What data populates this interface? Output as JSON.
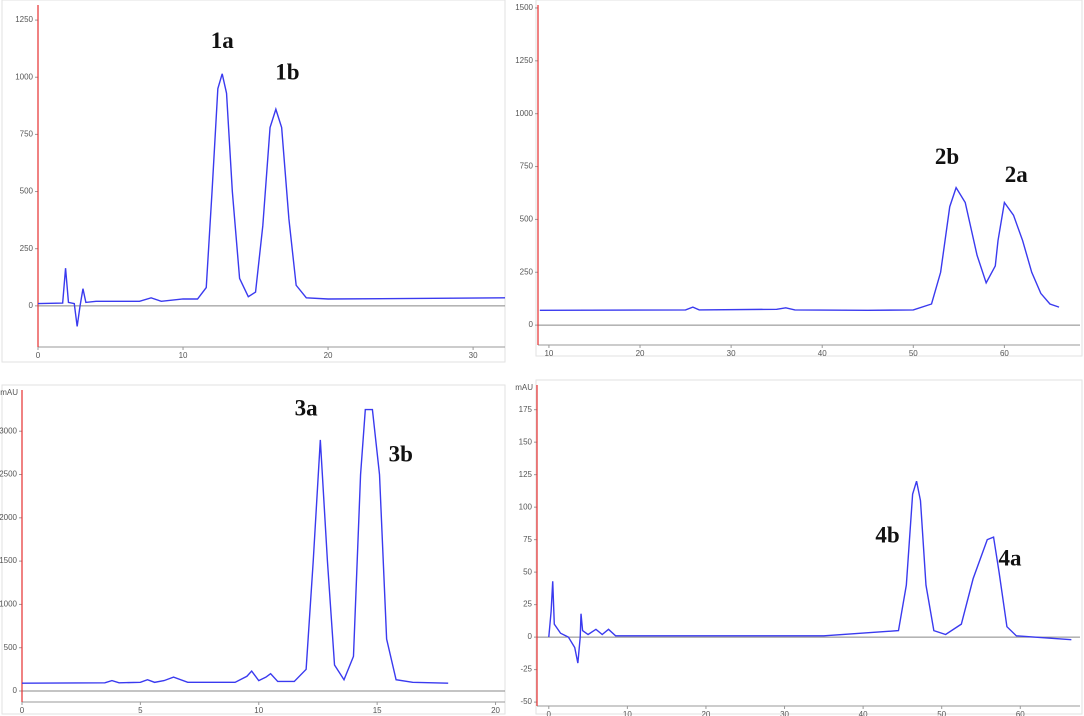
{
  "chart_data": [
    {
      "type": "line",
      "color": "#3a3aef",
      "xlim": [
        0,
        32.2
      ],
      "ylim": [
        -180,
        1316
      ],
      "xticks": [
        0,
        10,
        20,
        30
      ],
      "yticks": [
        0,
        250,
        500,
        750,
        1000,
        1250
      ],
      "x": [
        0,
        1.7,
        1.9,
        2.1,
        2.5,
        2.7,
        2.9,
        3.1,
        3.3,
        4,
        7,
        7.8,
        8.5,
        10,
        11,
        11.6,
        12,
        12.4,
        12.7,
        13,
        13.4,
        13.9,
        14.5,
        15,
        15.5,
        16,
        16.4,
        16.8,
        17.3,
        17.8,
        18.5,
        20,
        32.2
      ],
      "values": [
        10,
        12,
        165,
        15,
        10,
        -90,
        0,
        75,
        15,
        20,
        20,
        35,
        20,
        30,
        30,
        80,
        500,
        950,
        1015,
        930,
        500,
        120,
        40,
        60,
        350,
        780,
        860,
        780,
        380,
        90,
        35,
        30,
        35
      ],
      "annotations": [
        {
          "text": "1a",
          "x": 12.7,
          "y": 1150
        },
        {
          "text": "1b",
          "x": 17.2,
          "y": 1013
        }
      ]
    },
    {
      "type": "line",
      "color": "#3a3aef",
      "xlim": [
        8.8,
        68.3
      ],
      "ylim": [
        -94,
        1514
      ],
      "xticks": [
        10,
        20,
        30,
        40,
        50,
        60
      ],
      "yticks": [
        0,
        250,
        500,
        750,
        1000,
        1250,
        1500
      ],
      "x": [
        9,
        25,
        25.8,
        26.5,
        35,
        36,
        37,
        45,
        50,
        52,
        53,
        54,
        54.7,
        55.7,
        57,
        58,
        59,
        59.3,
        60,
        61,
        62,
        63,
        64,
        65,
        66
      ],
      "values": [
        70,
        72,
        85,
        72,
        75,
        82,
        72,
        70,
        72,
        100,
        250,
        560,
        650,
        580,
        330,
        200,
        280,
        400,
        580,
        520,
        400,
        250,
        150,
        100,
        85
      ],
      "annotations": [
        {
          "text": "2b",
          "x": 53.7,
          "y": 788
        },
        {
          "text": "2a",
          "x": 61.3,
          "y": 703
        }
      ]
    },
    {
      "type": "line",
      "color": "#3a3aef",
      "ylabel": "mAU",
      "xlim": [
        0,
        20.4
      ],
      "ylim": [
        -127,
        3476
      ],
      "xticks": [
        0,
        5,
        10,
        15,
        20
      ],
      "yticks": [
        0,
        500,
        1000,
        1500,
        2000,
        2500,
        3000
      ],
      "x": [
        0,
        3.5,
        3.8,
        4.1,
        5,
        5.3,
        5.6,
        6,
        6.4,
        7,
        9,
        9.5,
        9.7,
        10,
        10.3,
        10.5,
        10.8,
        11.5,
        12,
        12.3,
        12.6,
        12.9,
        13.2,
        13.6,
        14,
        14.3,
        14.5,
        14.8,
        15.1,
        15.4,
        15.8,
        16.5,
        18
      ],
      "values": [
        90,
        95,
        120,
        95,
        100,
        130,
        100,
        120,
        160,
        100,
        100,
        170,
        230,
        120,
        160,
        200,
        110,
        110,
        250,
        1500,
        2900,
        1500,
        300,
        130,
        400,
        2500,
        3250,
        3250,
        2500,
        600,
        130,
        100,
        90
      ],
      "annotations": [
        {
          "text": "3a",
          "x": 12,
          "y": 3245
        },
        {
          "text": "3b",
          "x": 16,
          "y": 2713
        }
      ]
    },
    {
      "type": "line",
      "color": "#3a3aef",
      "ylabel": "mAU",
      "xlim": [
        -1.5,
        67.6
      ],
      "ylim": [
        -53,
        194
      ],
      "xticks": [
        0,
        10,
        20,
        30,
        40,
        50,
        60
      ],
      "yticks": [
        -50,
        -25,
        0,
        25,
        50,
        75,
        100,
        125,
        150,
        175
      ],
      "x": [
        0,
        0.3,
        0.5,
        0.7,
        1.5,
        2.5,
        3.3,
        3.7,
        4,
        4.1,
        4.3,
        5,
        6,
        6.8,
        7.6,
        8.5,
        35,
        44.5,
        45.5,
        46.3,
        46.8,
        47.3,
        48,
        49,
        50.5,
        52.5,
        54,
        55.8,
        56.6,
        57.3,
        58.3,
        59.5,
        66.5
      ],
      "values": [
        0,
        20,
        43,
        10,
        3,
        0,
        -8,
        -20,
        0,
        18,
        5,
        2,
        6,
        2,
        6,
        1,
        1,
        5,
        40,
        110,
        120,
        105,
        40,
        5,
        2,
        10,
        45,
        75,
        77,
        50,
        8,
        1,
        -2
      ],
      "annotations": [
        {
          "text": "4b",
          "x": 43.1,
          "y": 77
        },
        {
          "text": "4a",
          "x": 58.7,
          "y": 59
        }
      ]
    }
  ]
}
